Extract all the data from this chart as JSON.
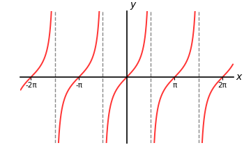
{
  "title": "y",
  "xlabel": "x",
  "xlim": [
    -7.0,
    7.0
  ],
  "ylim": [
    -4.2,
    4.2
  ],
  "curve_color": "#FF3333",
  "curve_linewidth": 1.4,
  "asymptote_color": "#888888",
  "asymptote_linewidth": 1.0,
  "asymptote_linestyle": "--",
  "asymptotes": [
    -4.71238898038469,
    -1.5707963267948966,
    1.5707963267948966,
    4.71238898038469
  ],
  "xtick_positions": [
    -6.283185307179586,
    -3.141592653589793,
    3.141592653589793,
    6.283185307179586
  ],
  "xtick_labels": [
    "-2π",
    "-π",
    "π",
    "2π"
  ],
  "background_color": "#ffffff",
  "axis_linewidth": 1.2,
  "clip_val": 4.2,
  "num_points": 3000,
  "eps": 0.03
}
